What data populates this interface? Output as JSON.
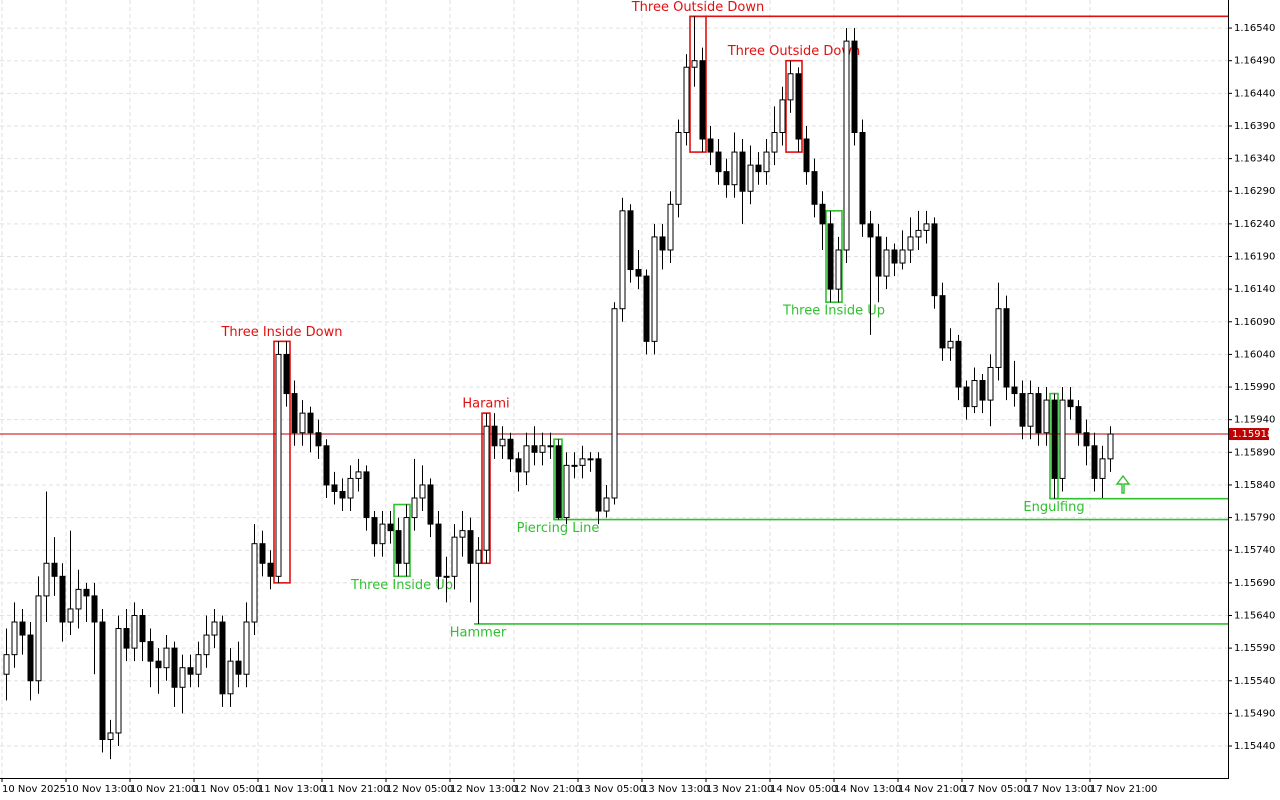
{
  "chart_data": {
    "type": "candlestick",
    "categories": [
      "10 Nov 2025",
      null,
      null,
      null,
      null,
      null,
      null,
      null,
      "10 Nov 13:00",
      null,
      null,
      null,
      null,
      null,
      null,
      null,
      "10 Nov 21:00",
      null,
      null,
      null,
      null,
      null,
      null,
      null,
      "11 Nov 05:00",
      null,
      null,
      null,
      null,
      null,
      null,
      null,
      "11 Nov 13:00",
      null,
      null,
      null,
      null,
      null,
      null,
      null,
      "11 Nov 21:00",
      null,
      null,
      null,
      null,
      null,
      null,
      null,
      "12 Nov 05:00",
      null,
      null,
      null,
      null,
      null,
      null,
      null,
      "12 Nov 13:00",
      null,
      null,
      null,
      null,
      null,
      null,
      null,
      "12 Nov 21:00",
      null,
      null,
      null,
      null,
      null,
      null,
      null,
      "13 Nov 05:00",
      null,
      null,
      null,
      null,
      null,
      null,
      null,
      "13 Nov 13:00",
      null,
      null,
      null,
      null,
      null,
      null,
      null,
      "13 Nov 21:00",
      null,
      null,
      null,
      null,
      null,
      null,
      null,
      "14 Nov 05:00",
      null,
      null,
      null,
      null,
      null,
      null,
      null,
      "14 Nov 13:00",
      null,
      null,
      null,
      null,
      null,
      null,
      null,
      "14 Nov 21:00",
      null,
      null,
      null,
      null,
      null,
      null,
      null,
      "17 Nov 05:00",
      null,
      null,
      null,
      null,
      null,
      null,
      null,
      "17 Nov 13:00",
      null,
      null,
      null,
      null,
      null,
      null,
      null,
      "17 Nov 21:00",
      null,
      null
    ],
    "ohlc": [
      [
        1.1555,
        1.1562,
        1.1551,
        1.1558
      ],
      [
        1.1558,
        1.1566,
        1.1556,
        1.1563
      ],
      [
        1.1563,
        1.1565,
        1.1558,
        1.1561
      ],
      [
        1.1561,
        1.1563,
        1.1551,
        1.1554
      ],
      [
        1.1554,
        1.157,
        1.1552,
        1.1567
      ],
      [
        1.1567,
        1.1583,
        1.1563,
        1.1572
      ],
      [
        1.1572,
        1.1576,
        1.1567,
        1.157
      ],
      [
        1.157,
        1.1572,
        1.156,
        1.1563
      ],
      [
        1.1563,
        1.1577,
        1.1561,
        1.1565
      ],
      [
        1.1565,
        1.1571,
        1.1562,
        1.1568
      ],
      [
        1.1568,
        1.1569,
        1.1563,
        1.1567
      ],
      [
        1.1567,
        1.1569,
        1.1555,
        1.1563
      ],
      [
        1.1563,
        1.1565,
        1.1543,
        1.1545
      ],
      [
        1.1545,
        1.1548,
        1.1542,
        1.1546
      ],
      [
        1.1546,
        1.1564,
        1.1544,
        1.1562
      ],
      [
        1.1562,
        1.1565,
        1.1557,
        1.1559
      ],
      [
        1.1559,
        1.1566,
        1.1557,
        1.1564
      ],
      [
        1.1564,
        1.1565,
        1.1557,
        1.156
      ],
      [
        1.156,
        1.1562,
        1.1553,
        1.1557
      ],
      [
        1.1557,
        1.1559,
        1.1552,
        1.1556
      ],
      [
        1.1556,
        1.1561,
        1.1554,
        1.1559
      ],
      [
        1.1559,
        1.156,
        1.155,
        1.1553
      ],
      [
        1.1553,
        1.1558,
        1.1549,
        1.1556
      ],
      [
        1.1556,
        1.1558,
        1.1553,
        1.1555
      ],
      [
        1.1555,
        1.156,
        1.1553,
        1.1558
      ],
      [
        1.1558,
        1.1564,
        1.1556,
        1.1561
      ],
      [
        1.1561,
        1.1565,
        1.1559,
        1.1563
      ],
      [
        1.1563,
        1.1564,
        1.155,
        1.1552
      ],
      [
        1.1552,
        1.1559,
        1.155,
        1.1557
      ],
      [
        1.1557,
        1.156,
        1.1553,
        1.1555
      ],
      [
        1.1555,
        1.1566,
        1.1553,
        1.1563
      ],
      [
        1.1563,
        1.1578,
        1.1561,
        1.1575
      ],
      [
        1.1575,
        1.1577,
        1.157,
        1.1572
      ],
      [
        1.1572,
        1.1574,
        1.1568,
        1.157
      ],
      [
        1.157,
        1.1606,
        1.1569,
        1.1604
      ],
      [
        1.1604,
        1.1606,
        1.1596,
        1.1598
      ],
      [
        1.1598,
        1.16,
        1.159,
        1.1592
      ],
      [
        1.1592,
        1.1597,
        1.159,
        1.1595
      ],
      [
        1.1595,
        1.1596,
        1.1589,
        1.1592
      ],
      [
        1.1592,
        1.1594,
        1.1588,
        1.159
      ],
      [
        1.159,
        1.1591,
        1.1582,
        1.1584
      ],
      [
        1.1584,
        1.1586,
        1.1581,
        1.1583
      ],
      [
        1.1583,
        1.1585,
        1.158,
        1.1582
      ],
      [
        1.1582,
        1.1587,
        1.158,
        1.1585
      ],
      [
        1.1585,
        1.1588,
        1.1583,
        1.1586
      ],
      [
        1.1586,
        1.1587,
        1.1577,
        1.1579
      ],
      [
        1.1579,
        1.158,
        1.1573,
        1.1575
      ],
      [
        1.1575,
        1.158,
        1.1573,
        1.1578
      ],
      [
        1.1578,
        1.158,
        1.1575,
        1.1577
      ],
      [
        1.1577,
        1.1579,
        1.157,
        1.1572
      ],
      [
        1.1572,
        1.1581,
        1.157,
        1.1579
      ],
      [
        1.1579,
        1.1588,
        1.1577,
        1.1582
      ],
      [
        1.1582,
        1.1587,
        1.158,
        1.1584
      ],
      [
        1.1584,
        1.1585,
        1.1576,
        1.1578
      ],
      [
        1.1578,
        1.158,
        1.1568,
        1.157
      ],
      [
        1.157,
        1.1573,
        1.1566,
        1.157
      ],
      [
        1.157,
        1.1578,
        1.1568,
        1.1576
      ],
      [
        1.1576,
        1.158,
        1.1573,
        1.1577
      ],
      [
        1.1577,
        1.1579,
        1.1566,
        1.1572
      ],
      [
        1.1572,
        1.1576,
        1.15627,
        1.1574
      ],
      [
        1.1574,
        1.1595,
        1.1572,
        1.1593
      ],
      [
        1.1593,
        1.1595,
        1.1588,
        1.159
      ],
      [
        1.159,
        1.1593,
        1.1588,
        1.1591
      ],
      [
        1.1591,
        1.1592,
        1.1586,
        1.1588
      ],
      [
        1.1588,
        1.1589,
        1.1583,
        1.1586
      ],
      [
        1.1586,
        1.1592,
        1.1584,
        1.159
      ],
      [
        1.159,
        1.1593,
        1.1587,
        1.1589
      ],
      [
        1.1589,
        1.1592,
        1.1587,
        1.159
      ],
      [
        1.159,
        1.1592,
        1.1588,
        1.159
      ],
      [
        1.159,
        1.1591,
        1.15787,
        1.1579
      ],
      [
        1.1579,
        1.1589,
        1.1578,
        1.1587
      ],
      [
        1.1587,
        1.1589,
        1.1585,
        1.1587
      ],
      [
        1.1587,
        1.159,
        1.1585,
        1.1588
      ],
      [
        1.1588,
        1.1589,
        1.1586,
        1.1588
      ],
      [
        1.1588,
        1.1589,
        1.1578,
        1.158
      ],
      [
        1.158,
        1.1584,
        1.1579,
        1.1582
      ],
      [
        1.1582,
        1.1612,
        1.1581,
        1.1611
      ],
      [
        1.1611,
        1.1628,
        1.1609,
        1.1626
      ],
      [
        1.1626,
        1.1627,
        1.1615,
        1.1617
      ],
      [
        1.1617,
        1.162,
        1.1614,
        1.1616
      ],
      [
        1.1616,
        1.1617,
        1.1604,
        1.1606
      ],
      [
        1.1606,
        1.1624,
        1.1604,
        1.1622
      ],
      [
        1.1622,
        1.1624,
        1.1617,
        1.162
      ],
      [
        1.162,
        1.1629,
        1.1618,
        1.1627
      ],
      [
        1.1627,
        1.164,
        1.1625,
        1.1638
      ],
      [
        1.1638,
        1.165,
        1.1636,
        1.1648
      ],
      [
        1.1648,
        1.16558,
        1.1645,
        1.1649
      ],
      [
        1.1649,
        1.1651,
        1.1635,
        1.1637
      ],
      [
        1.1637,
        1.1639,
        1.1633,
        1.1635
      ],
      [
        1.1635,
        1.1637,
        1.163,
        1.1632
      ],
      [
        1.1632,
        1.1634,
        1.1628,
        1.163
      ],
      [
        1.163,
        1.1638,
        1.1628,
        1.1635
      ],
      [
        1.1635,
        1.1637,
        1.1624,
        1.1629
      ],
      [
        1.1629,
        1.1636,
        1.1627,
        1.1633
      ],
      [
        1.1633,
        1.1635,
        1.163,
        1.1632
      ],
      [
        1.1632,
        1.1637,
        1.163,
        1.1635
      ],
      [
        1.1635,
        1.1642,
        1.1633,
        1.1638
      ],
      [
        1.1638,
        1.1645,
        1.1636,
        1.1643
      ],
      [
        1.1643,
        1.1649,
        1.1641,
        1.1647
      ],
      [
        1.1647,
        1.1648,
        1.1635,
        1.1637
      ],
      [
        1.1637,
        1.1639,
        1.163,
        1.1632
      ],
      [
        1.1632,
        1.1634,
        1.1625,
        1.1627
      ],
      [
        1.1627,
        1.1629,
        1.162,
        1.1624
      ],
      [
        1.1624,
        1.1626,
        1.1612,
        1.1614
      ],
      [
        1.1614,
        1.1622,
        1.1612,
        1.162
      ],
      [
        1.162,
        1.1654,
        1.1618,
        1.1652
      ],
      [
        1.1652,
        1.1654,
        1.1636,
        1.1638
      ],
      [
        1.1638,
        1.164,
        1.1622,
        1.1624
      ],
      [
        1.1624,
        1.1626,
        1.1607,
        1.1622
      ],
      [
        1.1622,
        1.1624,
        1.1612,
        1.1616
      ],
      [
        1.1616,
        1.1622,
        1.1614,
        1.162
      ],
      [
        1.162,
        1.1621,
        1.1616,
        1.1618
      ],
      [
        1.1618,
        1.1623,
        1.1617,
        1.162
      ],
      [
        1.162,
        1.1625,
        1.1618,
        1.1622
      ],
      [
        1.1622,
        1.1626,
        1.162,
        1.1623
      ],
      [
        1.1623,
        1.1626,
        1.1621,
        1.1624
      ],
      [
        1.1624,
        1.1625,
        1.1611,
        1.1613
      ],
      [
        1.1613,
        1.1615,
        1.1603,
        1.1605
      ],
      [
        1.1605,
        1.1608,
        1.1603,
        1.1606
      ],
      [
        1.1606,
        1.1607,
        1.1597,
        1.1599
      ],
      [
        1.1599,
        1.16,
        1.1594,
        1.1596
      ],
      [
        1.1596,
        1.1602,
        1.1595,
        1.16
      ],
      [
        1.16,
        1.1601,
        1.1595,
        1.1597
      ],
      [
        1.1597,
        1.1604,
        1.1593,
        1.1602
      ],
      [
        1.1602,
        1.1615,
        1.16,
        1.1611
      ],
      [
        1.1611,
        1.1613,
        1.1597,
        1.1599
      ],
      [
        1.1599,
        1.1603,
        1.1596,
        1.1598
      ],
      [
        1.1598,
        1.16,
        1.1591,
        1.1593
      ],
      [
        1.1593,
        1.16,
        1.1591,
        1.1598
      ],
      [
        1.1598,
        1.1599,
        1.159,
        1.1592
      ],
      [
        1.1592,
        1.1599,
        1.159,
        1.1597
      ],
      [
        1.1597,
        1.1598,
        1.15819,
        1.1585
      ],
      [
        1.1585,
        1.1599,
        1.1583,
        1.1597
      ],
      [
        1.1597,
        1.1599,
        1.1594,
        1.1596
      ],
      [
        1.1596,
        1.1597,
        1.159,
        1.1592
      ],
      [
        1.1592,
        1.1594,
        1.1587,
        1.159
      ],
      [
        1.159,
        1.1592,
        1.1583,
        1.1585
      ],
      [
        1.1585,
        1.159,
        1.1582,
        1.1588
      ],
      [
        1.1588,
        1.1593,
        1.1586,
        1.15918
      ]
    ],
    "up_color": "#ffffff",
    "down_color": "#000000",
    "price_line_color": "#c00000",
    "ylim": [
      1.15391,
      1.16583
    ],
    "yticks": [
      {
        "value": 1.1654,
        "label": "1.16540"
      },
      {
        "value": 1.1649,
        "label": "1.16490"
      },
      {
        "value": 1.1644,
        "label": "1.16440"
      },
      {
        "value": 1.1639,
        "label": "1.16390"
      },
      {
        "value": 1.1634,
        "label": "1.16340"
      },
      {
        "value": 1.1629,
        "label": "1.16290"
      },
      {
        "value": 1.1624,
        "label": "1.16240"
      },
      {
        "value": 1.1619,
        "label": "1.16190"
      },
      {
        "value": 1.1614,
        "label": "1.16140"
      },
      {
        "value": 1.1609,
        "label": "1.16090"
      },
      {
        "value": 1.1604,
        "label": "1.16040"
      },
      {
        "value": 1.1599,
        "label": "1.15990"
      },
      {
        "value": 1.1594,
        "label": "1.15940"
      },
      {
        "value": 1.1589,
        "label": "1.15890"
      },
      {
        "value": 1.1584,
        "label": "1.15840"
      },
      {
        "value": 1.1579,
        "label": "1.15790"
      },
      {
        "value": 1.1574,
        "label": "1.15740"
      },
      {
        "value": 1.1569,
        "label": "1.15690"
      },
      {
        "value": 1.1564,
        "label": "1.15640"
      },
      {
        "value": 1.1559,
        "label": "1.15590"
      },
      {
        "value": 1.1554,
        "label": "1.15540"
      },
      {
        "value": 1.1549,
        "label": "1.15490"
      },
      {
        "value": 1.1544,
        "label": "1.15440"
      }
    ],
    "grid": true,
    "patterns": [
      {
        "label": "Three Inside Down",
        "color": "#e01010",
        "candles": [
          34,
          35
        ],
        "box": true
      },
      {
        "label": "Three Inside Up",
        "color": "#30c030",
        "candles": [
          49,
          50
        ],
        "box": true
      },
      {
        "label": "Hammer",
        "color": "#30c030",
        "candles": [
          59,
          59
        ],
        "box": false,
        "level": 1.15627
      },
      {
        "label": "Harami",
        "color": "#e01010",
        "candles": [
          60,
          60
        ],
        "box": true
      },
      {
        "label": "Piercing Line",
        "color": "#30c030",
        "candles": [
          69,
          69
        ],
        "box": true,
        "level": 1.15787
      },
      {
        "label": "Three Outside Down",
        "color": "#e01010",
        "candles": [
          86,
          87
        ],
        "box": true,
        "level": 1.16558
      },
      {
        "label": "Three Outside Down",
        "color": "#e01010",
        "candles": [
          98,
          99
        ],
        "box": true
      },
      {
        "label": "Three Inside Up",
        "color": "#30c030",
        "candles": [
          103,
          104
        ],
        "box": true
      },
      {
        "label": "Engulfing",
        "color": "#30c030",
        "candles": [
          131,
          131
        ],
        "box": true,
        "level": 1.15819
      }
    ]
  }
}
